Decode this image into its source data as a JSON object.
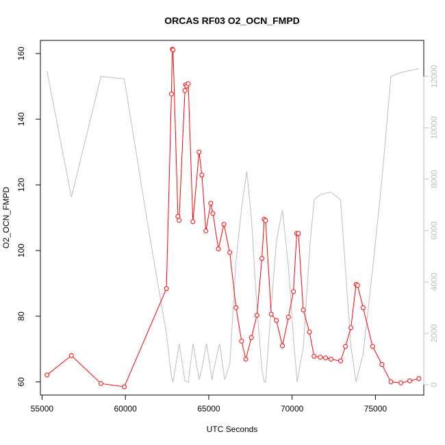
{
  "chart_data": {
    "type": "line",
    "title": "ORCAS RF03 O2_OCN_FMPD",
    "xlabel": "UTC Seconds",
    "ylabel": "O2_OCN_FMPD",
    "xlim": [
      54900,
      77900
    ],
    "ylim": [
      56,
      164
    ],
    "y2lim": [
      -400,
      13400
    ],
    "grid": false,
    "legend": "none",
    "x_ticks": [
      {
        "value": 55000,
        "label": "55000"
      },
      {
        "value": 60000,
        "label": "60000"
      },
      {
        "value": 65000,
        "label": "65000"
      },
      {
        "value": 70000,
        "label": "70000"
      },
      {
        "value": 75000,
        "label": "75000"
      }
    ],
    "y_ticks": [
      {
        "value": 60,
        "label": "60"
      },
      {
        "value": 80,
        "label": "80"
      },
      {
        "value": 100,
        "label": "100"
      },
      {
        "value": 120,
        "label": "120"
      },
      {
        "value": 140,
        "label": "140"
      },
      {
        "value": 160,
        "label": "160"
      }
    ],
    "y2_ticks": [
      {
        "value": 0,
        "label": "0"
      },
      {
        "value": 2000,
        "label": "2000"
      },
      {
        "value": 4000,
        "label": "4000"
      },
      {
        "value": 6000,
        "label": "6000"
      },
      {
        "value": 8000,
        "label": "8000"
      },
      {
        "value": 10000,
        "label": "10000"
      },
      {
        "value": 12000,
        "label": "12000"
      }
    ],
    "series": [
      {
        "axis": "left",
        "color": "#ff0000",
        "markers": "open-circle",
        "x": [
          55300,
          56760,
          58530,
          59930,
          62460,
          62760,
          62820,
          62860,
          63150,
          63220,
          63570,
          63620,
          63680,
          63770,
          64050,
          64420,
          64590,
          64830,
          65120,
          65250,
          65580,
          65910,
          66260,
          66640,
          66970,
          67220,
          67560,
          67890,
          68190,
          68330,
          68410,
          68750,
          69060,
          69420,
          69780,
          70080,
          70280,
          70380,
          70670,
          71040,
          71320,
          71690,
          72010,
          72330,
          72910,
          73200,
          73530,
          73840,
          73930,
          74260,
          74830,
          75390,
          75930,
          76530,
          77060,
          77600
        ],
        "y": [
          62.1,
          68.0,
          59.5,
          58.5,
          88.4,
          147.7,
          161.3,
          161.1,
          110.4,
          109.2,
          148.7,
          150.5,
          150.1,
          150.8,
          108.8,
          130.0,
          123.0,
          106.0,
          114.4,
          111.3,
          100.5,
          108.0,
          99.4,
          82.6,
          72.4,
          66.9,
          73.5,
          80.3,
          97.6,
          109.5,
          109.1,
          80.6,
          78.7,
          71.0,
          79.7,
          87.5,
          105.2,
          105.2,
          81.9,
          75.2,
          67.8,
          67.5,
          67.3,
          66.9,
          66.4,
          70.8,
          76.5,
          89.7,
          89.4,
          82.6,
          70.8,
          65.3,
          60.0,
          59.7,
          60.3,
          61.0
        ]
      },
      {
        "axis": "right",
        "color": "#bebebe",
        "markers": "none",
        "x": [
          55300,
          56760,
          58530,
          59930,
          61400,
          62460,
          62760,
          62860,
          63230,
          63570,
          63770,
          64060,
          64420,
          64580,
          64870,
          65200,
          65300,
          65650,
          65960,
          66260,
          66640,
          66970,
          67280,
          67560,
          67890,
          68190,
          68330,
          68410,
          68750,
          69060,
          69420,
          69780,
          70080,
          70300,
          70680,
          71080,
          71330,
          71690,
          72330,
          72910,
          73200,
          73530,
          73840,
          74260,
          74830,
          75390,
          75930,
          76530,
          77600
        ],
        "y": [
          12200,
          7300,
          12000,
          11900,
          6000,
          2000,
          300,
          100,
          1600,
          150,
          100,
          1600,
          200,
          600,
          1600,
          200,
          600,
          1600,
          200,
          800,
          4800,
          6900,
          8300,
          6500,
          3000,
          600,
          100,
          100,
          3000,
          5600,
          6800,
          4600,
          1800,
          100,
          1500,
          5500,
          7200,
          7400,
          7500,
          7200,
          4500,
          1500,
          100,
          1200,
          4500,
          8000,
          12000,
          12150,
          12300
        ]
      }
    ]
  }
}
